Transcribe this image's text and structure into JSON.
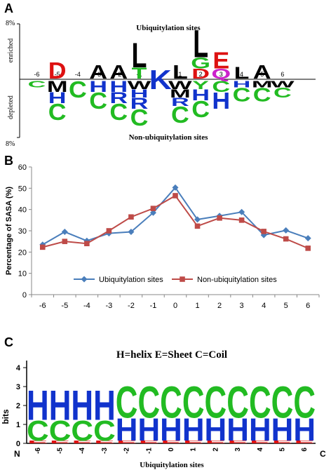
{
  "panels": {
    "a": "A",
    "b": "B",
    "c": "C"
  },
  "chart_data": [
    {
      "type": "sequence-logo",
      "title_top": "Ubiquitylation sites",
      "title_bottom": "Non-ubiquitylation sites",
      "ylabel_top": "enriched",
      "ylabel_bottom": "depleted",
      "ytick_top": "8%",
      "ytick_bottom": "8%",
      "positions": [
        "-6",
        "-5",
        "-4",
        "-3",
        "-2",
        "-1",
        "0",
        "1",
        "2",
        "3",
        "4",
        "5",
        "6"
      ],
      "center_letter": "K",
      "enriched": {
        "-6": [],
        "-5": [
          {
            "letter": "D",
            "color": "#dd1111",
            "share": 0.3
          }
        ],
        "-4": [],
        "-3": [
          {
            "letter": "A",
            "color": "#000000",
            "share": 0.25
          }
        ],
        "-2": [
          {
            "letter": "A",
            "color": "#000000",
            "share": 0.25
          }
        ],
        "-1": [
          {
            "letter": "T",
            "color": "#22bb22",
            "share": 0.2
          },
          {
            "letter": "L",
            "color": "#000000",
            "share": 0.45
          }
        ],
        "1": [
          {
            "letter": "L",
            "color": "#000000",
            "share": 0.25
          }
        ],
        "2": [
          {
            "letter": "D",
            "color": "#dd1111",
            "share": 0.18
          },
          {
            "letter": "G",
            "color": "#22bb22",
            "share": 0.2
          },
          {
            "letter": "L",
            "color": "#000000",
            "share": 0.5
          }
        ],
        "3": [
          {
            "letter": "Q",
            "color": "#cc22cc",
            "share": 0.18
          },
          {
            "letter": "E",
            "color": "#dd1111",
            "share": 0.3
          }
        ],
        "4": [
          {
            "letter": "L",
            "color": "#000000",
            "share": 0.22
          }
        ],
        "5": [
          {
            "letter": "A",
            "color": "#000000",
            "share": 0.25
          }
        ],
        "6": []
      },
      "depleted": {
        "-6": [
          {
            "letter": "C",
            "color": "#22bb22",
            "share": 0.12
          }
        ],
        "-5": [
          {
            "letter": "M",
            "color": "#000000",
            "share": 0.2
          },
          {
            "letter": "H",
            "color": "#1133cc",
            "share": 0.2
          },
          {
            "letter": "C",
            "color": "#22bb22",
            "share": 0.3
          }
        ],
        "-4": [
          {
            "letter": "C",
            "color": "#22bb22",
            "share": 0.3
          }
        ],
        "-3": [
          {
            "letter": "H",
            "color": "#1133cc",
            "share": 0.2
          },
          {
            "letter": "C",
            "color": "#22bb22",
            "share": 0.3
          }
        ],
        "-2": [
          {
            "letter": "H",
            "color": "#1133cc",
            "share": 0.2
          },
          {
            "letter": "R",
            "color": "#1133cc",
            "share": 0.2
          },
          {
            "letter": "C",
            "color": "#22bb22",
            "share": 0.3
          }
        ],
        "-1": [
          {
            "letter": "W",
            "color": "#000000",
            "share": 0.15
          },
          {
            "letter": "H",
            "color": "#1133cc",
            "share": 0.15
          },
          {
            "letter": "R",
            "color": "#1133cc",
            "share": 0.2
          },
          {
            "letter": "C",
            "color": "#22bb22",
            "share": 0.3
          }
        ],
        "1": [
          {
            "letter": "W",
            "color": "#000000",
            "share": 0.15
          },
          {
            "letter": "M",
            "color": "#000000",
            "share": 0.15
          },
          {
            "letter": "R",
            "color": "#1133cc",
            "share": 0.15
          },
          {
            "letter": "C",
            "color": "#22bb22",
            "share": 0.3
          }
        ],
        "2": [
          {
            "letter": "Y",
            "color": "#22bb22",
            "share": 0.15
          },
          {
            "letter": "H",
            "color": "#1133cc",
            "share": 0.2
          },
          {
            "letter": "C",
            "color": "#22bb22",
            "share": 0.3
          }
        ],
        "3": [
          {
            "letter": "C",
            "color": "#22bb22",
            "share": 0.2
          },
          {
            "letter": "H",
            "color": "#1133cc",
            "share": 0.3
          }
        ],
        "4": [
          {
            "letter": "H",
            "color": "#1133cc",
            "share": 0.12
          },
          {
            "letter": "C",
            "color": "#22bb22",
            "share": 0.25
          }
        ],
        "5": [
          {
            "letter": "M",
            "color": "#000000",
            "share": 0.12
          },
          {
            "letter": "C",
            "color": "#22bb22",
            "share": 0.25
          }
        ],
        "6": [
          {
            "letter": "W",
            "color": "#000000",
            "share": 0.12
          },
          {
            "letter": "C",
            "color": "#22bb22",
            "share": 0.18
          }
        ]
      }
    },
    {
      "type": "line",
      "title": "",
      "xlabel": "",
      "ylabel": "Percentage of SASA (%)",
      "x": [
        "-6",
        "-5",
        "-4",
        "-3",
        "-2",
        "-1",
        "0",
        "1",
        "2",
        "3",
        "4",
        "5",
        "6"
      ],
      "ylim": [
        0,
        60
      ],
      "yticks": [
        "0",
        "10",
        "20",
        "30",
        "40",
        "50",
        "60"
      ],
      "grid": false,
      "legend_position": "bottom",
      "series": [
        {
          "name": "Ubiquitylation sites",
          "color": "#4a7ebb",
          "marker": "diamond",
          "values": [
            23.5,
            29.5,
            25.3,
            28.8,
            29.5,
            38.5,
            50.3,
            35.3,
            37.0,
            38.8,
            28.0,
            30.2,
            26.5
          ]
        },
        {
          "name": "Non-ubiquitylation sites",
          "color": "#be4b48",
          "marker": "square",
          "values": [
            22.3,
            25.0,
            24.0,
            30.0,
            36.5,
            40.5,
            46.5,
            32.2,
            36.0,
            35.0,
            29.7,
            26.2,
            21.8
          ]
        }
      ]
    },
    {
      "type": "sequence-logo",
      "title": "H=helix E=Sheet C=Coil",
      "ylabel": "bits",
      "xlabel": "Ubiquitylation sites",
      "left_label": "N",
      "right_label": "C",
      "yticks": [
        "0",
        "1",
        "2",
        "3",
        "4"
      ],
      "ylim": [
        0,
        4.3
      ],
      "positions": [
        "-6",
        "-5",
        "-4",
        "-3",
        "-2",
        "-1",
        "0",
        "1",
        "2",
        "3",
        "4",
        "5",
        "6"
      ],
      "stacks": [
        [
          {
            "letter": "E",
            "color": "#dd1111",
            "bits": 0.15
          },
          {
            "letter": "C",
            "color": "#22bb22",
            "bits": 1.1
          },
          {
            "letter": "H",
            "color": "#1133cc",
            "bits": 1.6
          }
        ],
        [
          {
            "letter": "E",
            "color": "#dd1111",
            "bits": 0.15
          },
          {
            "letter": "C",
            "color": "#22bb22",
            "bits": 1.1
          },
          {
            "letter": "H",
            "color": "#1133cc",
            "bits": 1.6
          }
        ],
        [
          {
            "letter": "E",
            "color": "#dd1111",
            "bits": 0.15
          },
          {
            "letter": "C",
            "color": "#22bb22",
            "bits": 1.1
          },
          {
            "letter": "H",
            "color": "#1133cc",
            "bits": 1.6
          }
        ],
        [
          {
            "letter": "E",
            "color": "#dd1111",
            "bits": 0.15
          },
          {
            "letter": "C",
            "color": "#22bb22",
            "bits": 1.1
          },
          {
            "letter": "H",
            "color": "#1133cc",
            "bits": 1.6
          }
        ],
        [
          {
            "letter": "E",
            "color": "#dd1111",
            "bits": 0.15
          },
          {
            "letter": "H",
            "color": "#1133cc",
            "bits": 1.2
          },
          {
            "letter": "C",
            "color": "#22bb22",
            "bits": 1.7
          }
        ],
        [
          {
            "letter": "E",
            "color": "#dd1111",
            "bits": 0.15
          },
          {
            "letter": "H",
            "color": "#1133cc",
            "bits": 1.2
          },
          {
            "letter": "C",
            "color": "#22bb22",
            "bits": 1.7
          }
        ],
        [
          {
            "letter": "E",
            "color": "#dd1111",
            "bits": 0.15
          },
          {
            "letter": "H",
            "color": "#1133cc",
            "bits": 1.2
          },
          {
            "letter": "C",
            "color": "#22bb22",
            "bits": 1.7
          }
        ],
        [
          {
            "letter": "E",
            "color": "#dd1111",
            "bits": 0.15
          },
          {
            "letter": "H",
            "color": "#1133cc",
            "bits": 1.2
          },
          {
            "letter": "C",
            "color": "#22bb22",
            "bits": 1.7
          }
        ],
        [
          {
            "letter": "E",
            "color": "#dd1111",
            "bits": 0.15
          },
          {
            "letter": "H",
            "color": "#1133cc",
            "bits": 1.2
          },
          {
            "letter": "C",
            "color": "#22bb22",
            "bits": 1.7
          }
        ],
        [
          {
            "letter": "E",
            "color": "#dd1111",
            "bits": 0.15
          },
          {
            "letter": "H",
            "color": "#1133cc",
            "bits": 1.2
          },
          {
            "letter": "C",
            "color": "#22bb22",
            "bits": 1.7
          }
        ],
        [
          {
            "letter": "E",
            "color": "#dd1111",
            "bits": 0.15
          },
          {
            "letter": "H",
            "color": "#1133cc",
            "bits": 1.2
          },
          {
            "letter": "C",
            "color": "#22bb22",
            "bits": 1.7
          }
        ],
        [
          {
            "letter": "E",
            "color": "#dd1111",
            "bits": 0.15
          },
          {
            "letter": "H",
            "color": "#1133cc",
            "bits": 1.2
          },
          {
            "letter": "C",
            "color": "#22bb22",
            "bits": 1.7
          }
        ],
        [
          {
            "letter": "E",
            "color": "#dd1111",
            "bits": 0.15
          },
          {
            "letter": "H",
            "color": "#1133cc",
            "bits": 1.2
          },
          {
            "letter": "C",
            "color": "#22bb22",
            "bits": 1.7
          }
        ]
      ]
    }
  ]
}
